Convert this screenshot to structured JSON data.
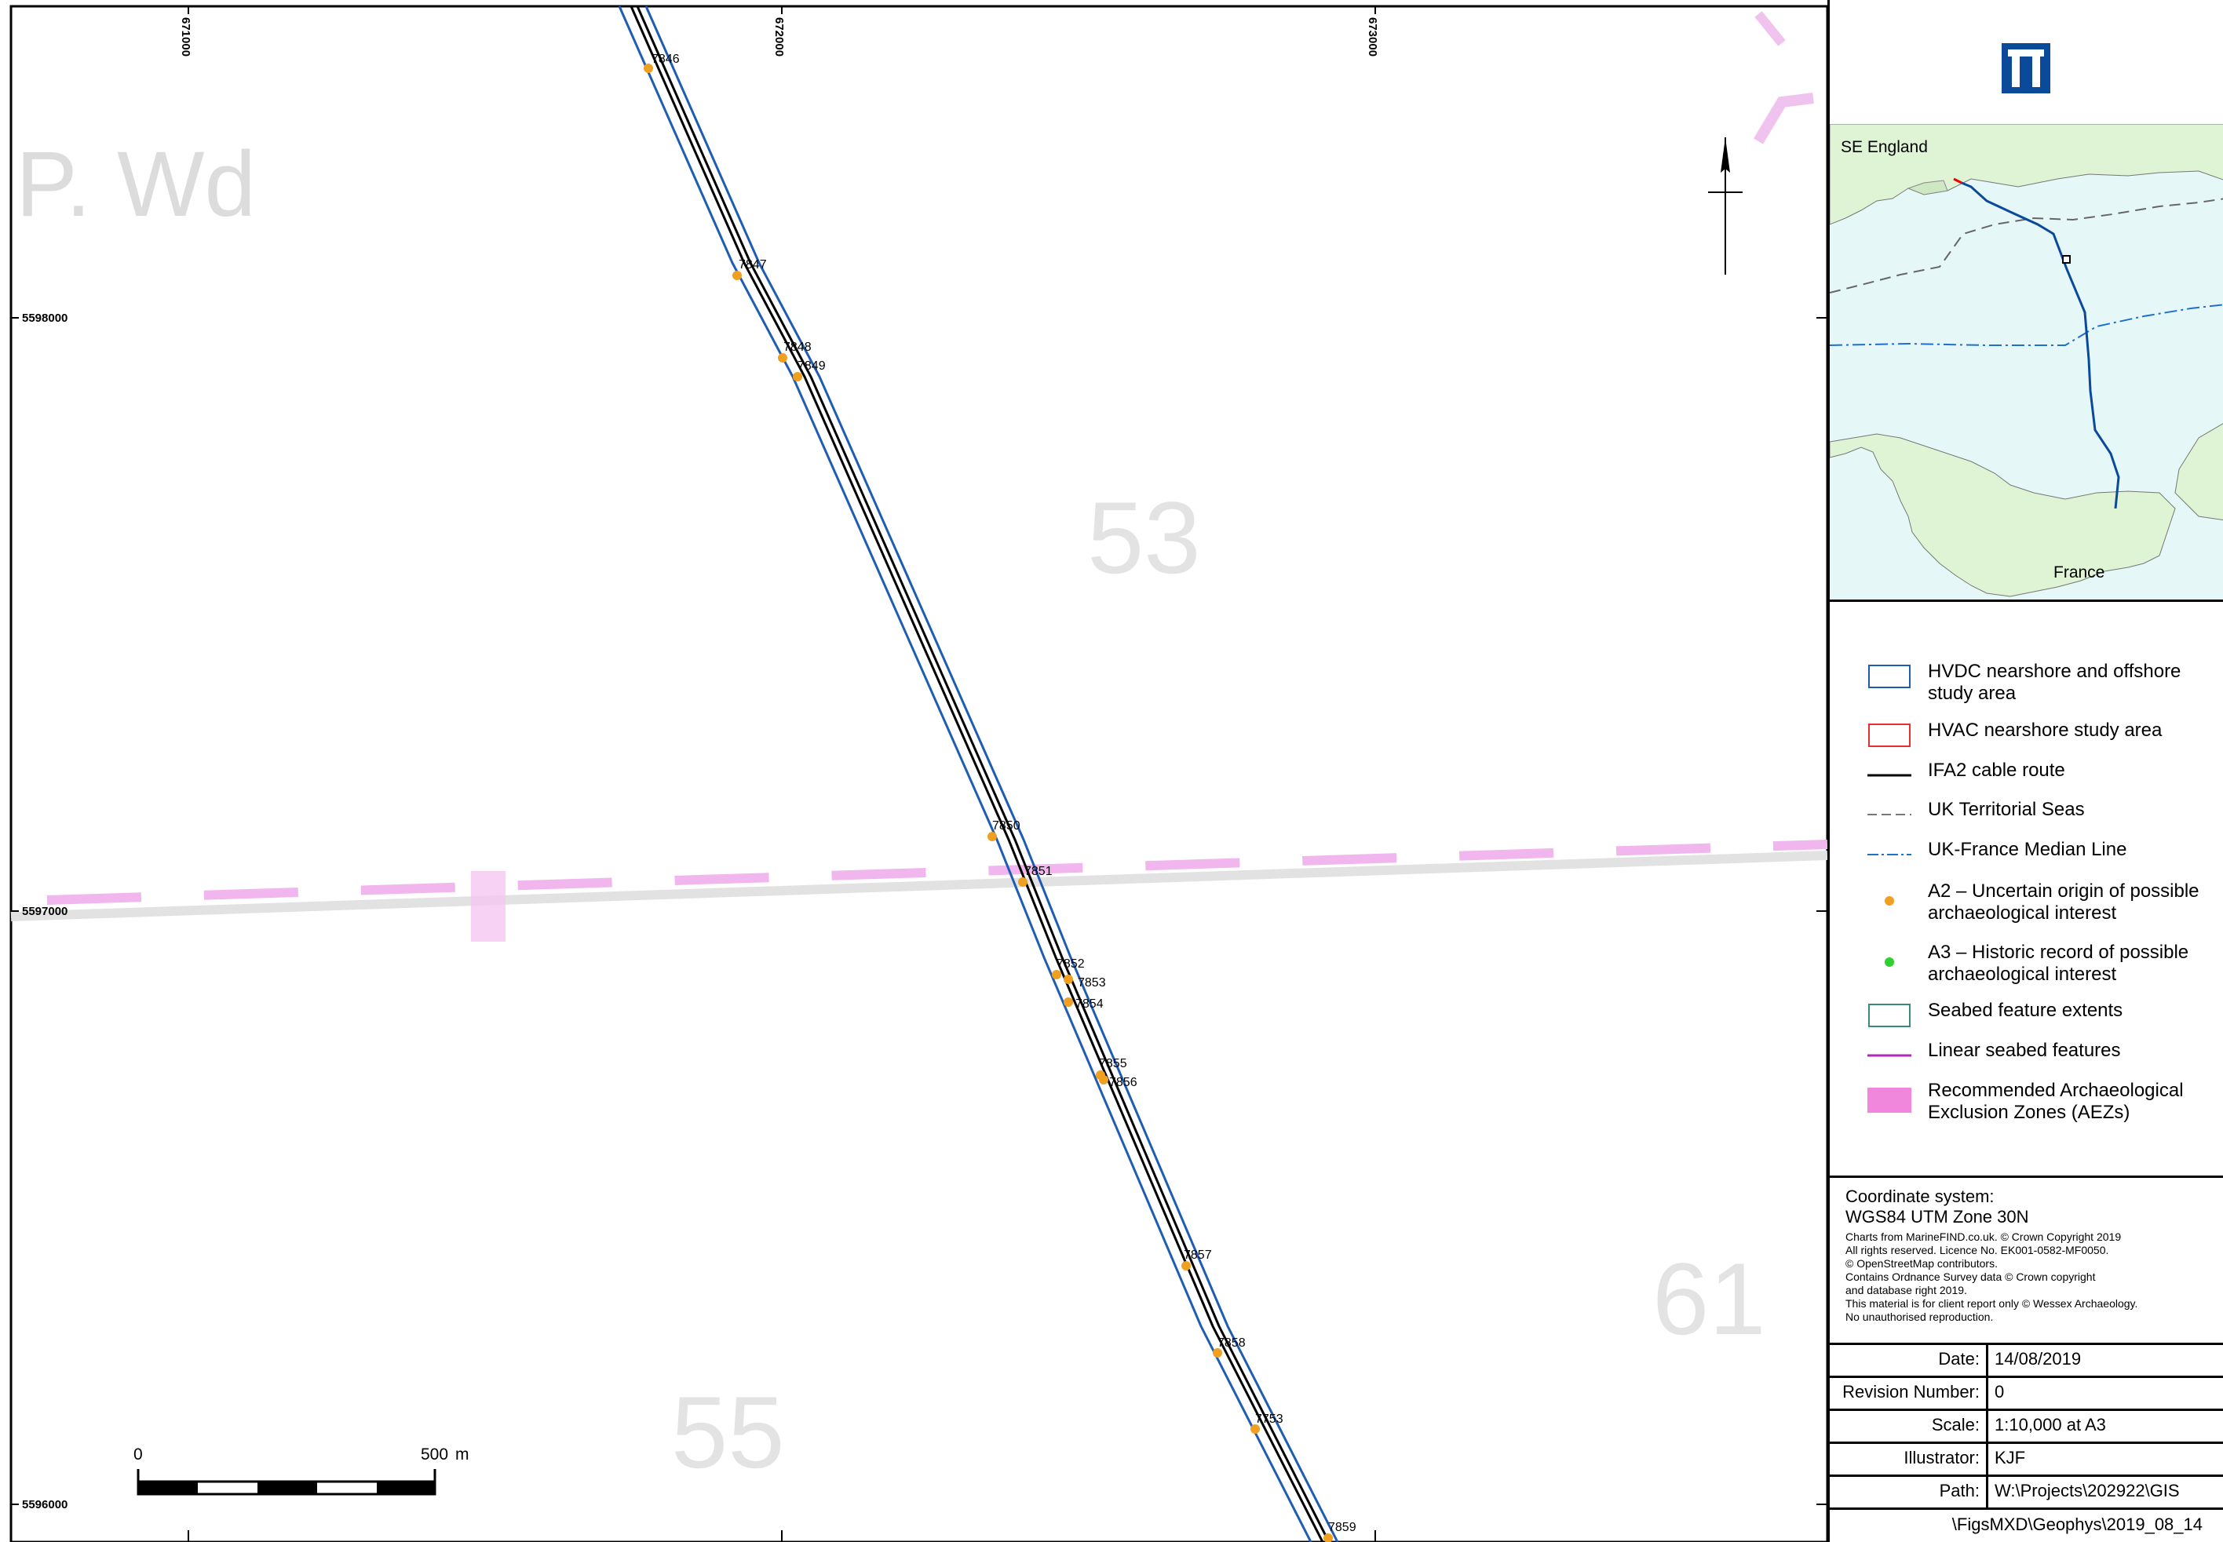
{
  "grid": {
    "eastings": [
      "671000",
      "672000",
      "673000"
    ],
    "northings": [
      "5598000",
      "5597000",
      "5596000"
    ]
  },
  "map": {
    "chart_numbers": [
      "P. Wd",
      "53",
      "55",
      "61"
    ],
    "features": [
      {
        "id": "7846"
      },
      {
        "id": "7847"
      },
      {
        "id": "7848"
      },
      {
        "id": "7849"
      },
      {
        "id": "7850"
      },
      {
        "id": "7851"
      },
      {
        "id": "7852"
      },
      {
        "id": "7853"
      },
      {
        "id": "7854"
      },
      {
        "id": "7855"
      },
      {
        "id": "7856"
      },
      {
        "id": "7857"
      },
      {
        "id": "7858"
      },
      {
        "id": "7753"
      },
      {
        "id": "7859"
      }
    ],
    "scale_bar": {
      "start": "0",
      "end": "500",
      "unit": "m"
    },
    "colors": {
      "hvdc": "#1f5db5",
      "route": "#000000",
      "a2": "#f0a020",
      "aez": "#ee88dd"
    }
  },
  "inset": {
    "label_north": "SE England",
    "label_south": "France"
  },
  "legend": {
    "items": [
      {
        "label": "HVDC nearshore and offshore study area",
        "symbol": "blue-box-icon"
      },
      {
        "label": "HVAC nearshore study area",
        "symbol": "red-box-icon"
      },
      {
        "label": "IFA2 cable route",
        "symbol": "black-line-icon"
      },
      {
        "label": "UK Territorial Seas",
        "symbol": "grey-dash-line-icon"
      },
      {
        "label": "UK-France Median Line",
        "symbol": "blue-dashdot-line-icon"
      },
      {
        "label": "A2 – Uncertain origin of possible archaeological interest",
        "symbol": "orange-dot-icon"
      },
      {
        "label": "A3 – Historic record of possible archaeological interest",
        "symbol": "green-dot-icon"
      },
      {
        "label": "Seabed feature extents",
        "symbol": "teal-box-icon"
      },
      {
        "label": "Linear seabed features",
        "symbol": "purple-line-icon"
      },
      {
        "label": "Recommended Archaeological Exclusion Zones (AEZs)",
        "symbol": "pink-fill-icon"
      }
    ]
  },
  "coords": {
    "heading": "Coordinate system:",
    "system": "WGS84 UTM Zone 30N",
    "credits": [
      "Charts from MarineFIND.co.uk. © Crown Copyright 2019",
      "All rights reserved. Licence No. EK001-0582-MF0050.",
      "© OpenStreetMap contributors.",
      "Contains Ordnance Survey data © Crown copyright",
      "and database right 2019.",
      "This material is for client report only © Wessex Archaeology.",
      "No unauthorised reproduction."
    ]
  },
  "info": {
    "rows": [
      {
        "label": "Date:",
        "value": "14/08/2019"
      },
      {
        "label": "Revision Number:",
        "value": "0"
      },
      {
        "label": "Scale:",
        "value": "1:10,000 at A3"
      },
      {
        "label": "Illustrator:",
        "value": "KJF"
      },
      {
        "label": "Path:",
        "value": "W:\\Projects\\202922\\GIS"
      }
    ],
    "path_cont": "\\FigsMXD\\Geophys\\2019_08_14"
  }
}
